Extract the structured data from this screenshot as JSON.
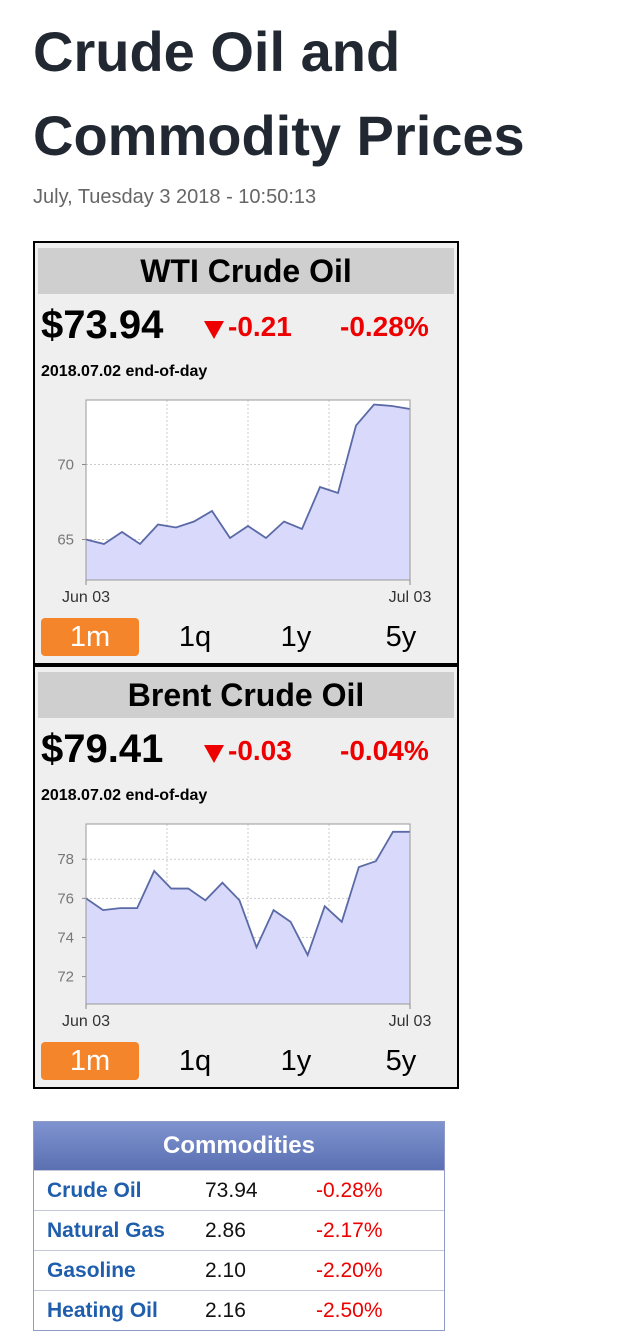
{
  "header": {
    "title": "Crude Oil and Commodity Prices",
    "timestamp": "July, Tuesday 3 2018 - 10:50:13"
  },
  "widgets": [
    {
      "name": "WTI Crude Oil",
      "price": "$73.94",
      "change": "-0.21",
      "change_pct": "-0.28%",
      "note": "2018.07.02 end-of-day",
      "periods": [
        "1m",
        "1q",
        "1y",
        "5y"
      ],
      "active_period": 0,
      "chart_data": {
        "type": "area",
        "categories": [
          "Jun 03",
          null,
          null,
          null,
          null,
          null,
          null,
          null,
          null,
          null,
          null,
          null,
          null,
          null,
          null,
          null,
          null,
          null,
          "Jul 03"
        ],
        "values": [
          65.0,
          64.7,
          65.5,
          64.7,
          66.0,
          65.8,
          66.2,
          66.9,
          65.1,
          65.9,
          65.1,
          66.2,
          65.7,
          68.5,
          68.1,
          72.6,
          74.0,
          73.9,
          73.7
        ],
        "ylim": [
          62.3,
          74.3
        ],
        "yticks": [
          65,
          70
        ],
        "color": "#5a6aa6",
        "fill": "#d9d9fb",
        "grid": true
      }
    },
    {
      "name": "Brent Crude Oil",
      "price": "$79.41",
      "change": "-0.03",
      "change_pct": "-0.04%",
      "note": "2018.07.02 end-of-day",
      "periods": [
        "1m",
        "1q",
        "1y",
        "5y"
      ],
      "active_period": 0,
      "chart_data": {
        "type": "area",
        "categories": [
          "Jun 03",
          null,
          null,
          null,
          null,
          null,
          null,
          null,
          null,
          null,
          null,
          null,
          null,
          null,
          null,
          null,
          null,
          null,
          null,
          "Jul 03"
        ],
        "values": [
          76.0,
          75.4,
          75.5,
          75.5,
          77.4,
          76.5,
          76.5,
          75.9,
          76.8,
          75.9,
          73.5,
          75.4,
          74.8,
          73.1,
          75.6,
          74.8,
          77.6,
          77.9,
          79.4,
          79.4
        ],
        "ylim": [
          70.6,
          79.8
        ],
        "yticks": [
          72,
          74,
          76,
          78
        ],
        "color": "#5a6aa6",
        "fill": "#d9d9fb",
        "grid": true
      }
    }
  ],
  "table": {
    "title": "Commodities",
    "rows": [
      [
        "Crude Oil",
        "73.94",
        "-0.28%"
      ],
      [
        "Natural Gas",
        "2.86",
        "-2.17%"
      ],
      [
        "Gasoline",
        "2.10",
        "-2.20%"
      ],
      [
        "Heating Oil",
        "2.16",
        "-2.50%"
      ]
    ]
  }
}
